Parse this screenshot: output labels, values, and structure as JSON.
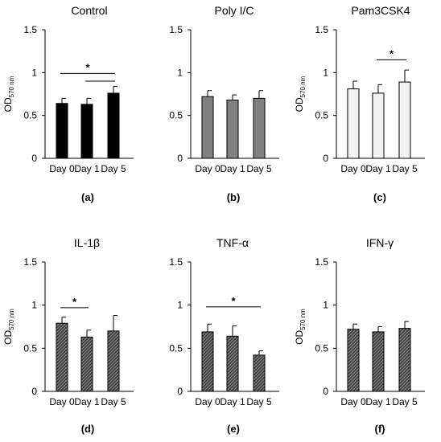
{
  "chart_data": [
    {
      "type": "bar",
      "title": "Control",
      "panel_label": "(a)",
      "ylabel": "OD",
      "ylabel_sub": "570 nm",
      "categories": [
        "Day 0",
        "Day 1",
        "Day 5"
      ],
      "values": [
        0.64,
        0.63,
        0.76
      ],
      "errors": [
        0.06,
        0.07,
        0.08
      ],
      "ylim": [
        0,
        1.5
      ],
      "yticks": [
        "0",
        "0.5",
        "1",
        "1.5"
      ],
      "bar_color": "#000000",
      "bar_fill": "solid",
      "significance": [
        {
          "from": 0,
          "to": 2,
          "y": 0.99,
          "star_offset": 0.5,
          "label": "*"
        },
        {
          "from": 1,
          "to": 2,
          "y": 0.9
        }
      ]
    },
    {
      "type": "bar",
      "title": "Poly I/C",
      "panel_label": "(b)",
      "ylabel": "",
      "ylabel_sub": "",
      "categories": [
        "Day 0",
        "Day 1",
        "Day 5"
      ],
      "values": [
        0.72,
        0.68,
        0.7
      ],
      "errors": [
        0.07,
        0.06,
        0.09
      ],
      "ylim": [
        0,
        1.5
      ],
      "yticks": [
        "0",
        "0.5",
        "1",
        "1.5"
      ],
      "bar_color": "#808080",
      "bar_fill": "solid",
      "significance": []
    },
    {
      "type": "bar",
      "title": "Pam3CSK4",
      "panel_label": "(c)",
      "ylabel": "OD",
      "ylabel_sub": "570 nm",
      "categories": [
        "Day 0",
        "Day 1",
        "Day 5"
      ],
      "values": [
        0.81,
        0.76,
        0.89
      ],
      "errors": [
        0.09,
        0.1,
        0.14
      ],
      "ylim": [
        0,
        1.5
      ],
      "yticks": [
        "0",
        "0.5",
        "1",
        "1.5"
      ],
      "bar_color": "#f2f2f2",
      "bar_fill": "solid",
      "significance": [
        {
          "from": 1,
          "to": 2,
          "y": 1.15,
          "star_offset": 0.5,
          "label": "*"
        }
      ]
    },
    {
      "type": "bar",
      "title": "IL-1β",
      "panel_label": "(d)",
      "ylabel": "OD",
      "ylabel_sub": "570 nm",
      "categories": [
        "Day 0",
        "Day 1",
        "Day 5"
      ],
      "values": [
        0.79,
        0.63,
        0.7
      ],
      "errors": [
        0.07,
        0.08,
        0.18
      ],
      "ylim": [
        0,
        1.5
      ],
      "yticks": [
        "0",
        "0.5",
        "1",
        "1.5"
      ],
      "bar_color": "#404040",
      "bar_fill": "hatched",
      "significance": [
        {
          "from": 0,
          "to": 1,
          "y": 0.97,
          "star_offset": 0.5,
          "label": "*"
        }
      ]
    },
    {
      "type": "bar",
      "title": "TNF-α",
      "panel_label": "(e)",
      "ylabel": "",
      "ylabel_sub": "",
      "categories": [
        "Day 0",
        "Day 1",
        "Day 5"
      ],
      "values": [
        0.69,
        0.64,
        0.42
      ],
      "errors": [
        0.09,
        0.12,
        0.05
      ],
      "ylim": [
        0,
        1.5
      ],
      "yticks": [
        "0",
        "0.5",
        "1",
        "1.5"
      ],
      "bar_color": "#404040",
      "bar_fill": "hatched",
      "significance": [
        {
          "from": 0,
          "to": 2,
          "y": 0.98,
          "star_offset": 0.5,
          "label": "*"
        }
      ]
    },
    {
      "type": "bar",
      "title": "IFN-γ",
      "panel_label": "(f)",
      "ylabel": "OD",
      "ylabel_sub": "570 nm",
      "categories": [
        "Day 0",
        "Day 1",
        "Day 5"
      ],
      "values": [
        0.72,
        0.69,
        0.73
      ],
      "errors": [
        0.06,
        0.06,
        0.08
      ],
      "ylim": [
        0,
        1.5
      ],
      "yticks": [
        "0",
        "0.5",
        "1",
        "1.5"
      ],
      "bar_color": "#404040",
      "bar_fill": "hatched",
      "significance": []
    }
  ]
}
